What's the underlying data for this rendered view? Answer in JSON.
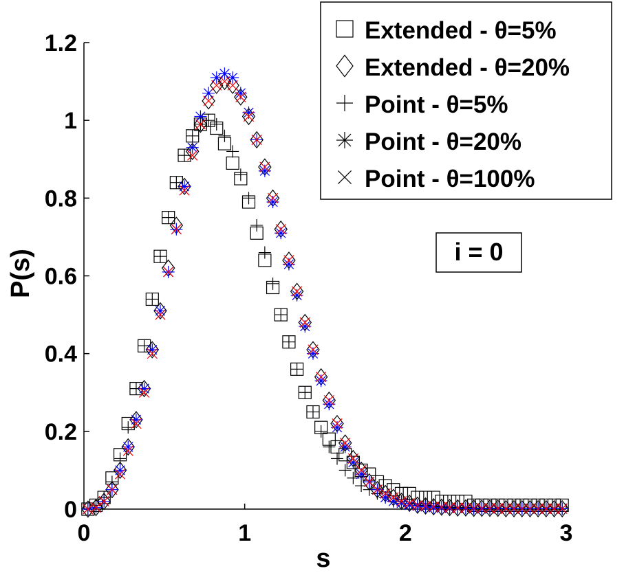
{
  "chart_data": {
    "type": "scatter",
    "title": "",
    "xlabel": "s",
    "ylabel": "P(s)",
    "xlim": [
      0,
      3
    ],
    "ylim": [
      0,
      1.2
    ],
    "xticks": [
      0,
      1,
      2,
      3
    ],
    "xtick_labels": [
      "0",
      "1",
      "2",
      "3"
    ],
    "yticks": [
      0,
      0.2,
      0.4,
      0.6,
      0.8,
      1.0,
      1.2
    ],
    "ytick_labels": [
      "0",
      "0.2",
      "0.4",
      "0.6",
      "0.8",
      "1",
      "1.2"
    ],
    "grid": false,
    "legend_position": "top-right",
    "annotation": "i = 0",
    "x": [
      0.025,
      0.075,
      0.125,
      0.175,
      0.225,
      0.275,
      0.325,
      0.375,
      0.425,
      0.475,
      0.525,
      0.575,
      0.625,
      0.675,
      0.725,
      0.775,
      0.825,
      0.875,
      0.925,
      0.975,
      1.025,
      1.075,
      1.125,
      1.175,
      1.225,
      1.275,
      1.325,
      1.375,
      1.425,
      1.475,
      1.525,
      1.575,
      1.625,
      1.675,
      1.725,
      1.775,
      1.825,
      1.875,
      1.925,
      1.975,
      2.025,
      2.075,
      2.125,
      2.175,
      2.225,
      2.275,
      2.325,
      2.375,
      2.425,
      2.475,
      2.525,
      2.575,
      2.625,
      2.675,
      2.725,
      2.775,
      2.825,
      2.875,
      2.925,
      2.975
    ],
    "series": [
      {
        "name": "Extended - θ=5%",
        "marker": "square",
        "color": "#000000",
        "values": [
          0.0,
          0.01,
          0.03,
          0.08,
          0.14,
          0.22,
          0.31,
          0.42,
          0.54,
          0.65,
          0.75,
          0.84,
          0.91,
          0.96,
          0.99,
          1.0,
          0.98,
          0.94,
          0.89,
          0.85,
          0.79,
          0.71,
          0.64,
          0.57,
          0.5,
          0.43,
          0.36,
          0.3,
          0.25,
          0.21,
          0.18,
          0.16,
          0.14,
          0.12,
          0.1,
          0.09,
          0.07,
          0.06,
          0.05,
          0.04,
          0.04,
          0.03,
          0.03,
          0.03,
          0.02,
          0.02,
          0.02,
          0.02,
          0.01,
          0.01,
          0.01,
          0.01,
          0.01,
          0.01,
          0.01,
          0.01,
          0.01,
          0.01,
          0.01,
          0.01
        ]
      },
      {
        "name": "Extended - θ=20%",
        "marker": "diamond",
        "color": "#000000",
        "values": [
          0.0,
          0.004,
          0.02,
          0.05,
          0.1,
          0.16,
          0.23,
          0.31,
          0.41,
          0.51,
          0.62,
          0.73,
          0.83,
          0.92,
          0.99,
          1.05,
          1.09,
          1.1,
          1.09,
          1.06,
          1.01,
          0.95,
          0.88,
          0.8,
          0.72,
          0.64,
          0.56,
          0.48,
          0.41,
          0.34,
          0.28,
          0.22,
          0.17,
          0.13,
          0.1,
          0.07,
          0.05,
          0.04,
          0.03,
          0.02,
          0.015,
          0.01,
          0.008,
          0.006,
          0.005,
          0.004,
          0.003,
          0.003,
          0.002,
          0.002,
          0.002,
          0.002,
          0.001,
          0.001,
          0.001,
          0.001,
          0.001,
          0.001,
          0.001,
          0.001
        ]
      },
      {
        "name": "Point - θ=5%",
        "marker": "plus",
        "color": "#000000",
        "values": [
          0.0,
          0.01,
          0.03,
          0.07,
          0.13,
          0.21,
          0.31,
          0.42,
          0.54,
          0.65,
          0.75,
          0.84,
          0.91,
          0.96,
          0.99,
          1.0,
          0.99,
          0.96,
          0.92,
          0.86,
          0.8,
          0.73,
          0.66,
          0.58,
          0.5,
          0.43,
          0.36,
          0.3,
          0.25,
          0.2,
          0.16,
          0.13,
          0.1,
          0.08,
          0.06,
          0.05,
          0.04,
          0.03,
          0.02,
          0.02,
          0.015,
          0.01,
          0.01,
          0.008,
          0.006,
          0.005,
          0.004,
          0.003,
          0.003,
          0.002,
          0.002,
          0.002,
          0.001,
          0.001,
          0.001,
          0.001,
          0.001,
          0.001,
          0.001,
          0.001
        ]
      },
      {
        "name": "Point - θ=20%",
        "marker": "asterisk",
        "color": "#0000ff",
        "values": [
          0.0,
          0.004,
          0.02,
          0.05,
          0.1,
          0.16,
          0.23,
          0.31,
          0.41,
          0.51,
          0.61,
          0.72,
          0.83,
          0.93,
          1.01,
          1.07,
          1.11,
          1.12,
          1.11,
          1.07,
          1.02,
          0.95,
          0.87,
          0.79,
          0.71,
          0.63,
          0.55,
          0.47,
          0.4,
          0.33,
          0.27,
          0.21,
          0.16,
          0.12,
          0.09,
          0.07,
          0.05,
          0.03,
          0.02,
          0.015,
          0.01,
          0.008,
          0.006,
          0.004,
          0.003,
          0.002,
          0.002,
          0.002,
          0.001,
          0.001,
          0.001,
          0.001,
          0.001,
          0.001,
          0.001,
          0.001,
          0.001,
          0.001,
          0.001,
          0.001
        ]
      },
      {
        "name": "Point - θ=100%",
        "marker": "cross",
        "color": "#ff0000",
        "values": [
          0.0,
          0.004,
          0.02,
          0.05,
          0.09,
          0.15,
          0.22,
          0.3,
          0.4,
          0.5,
          0.61,
          0.72,
          0.82,
          0.91,
          0.99,
          1.05,
          1.09,
          1.1,
          1.09,
          1.06,
          1.01,
          0.95,
          0.88,
          0.8,
          0.72,
          0.64,
          0.56,
          0.48,
          0.41,
          0.34,
          0.28,
          0.22,
          0.17,
          0.13,
          0.1,
          0.07,
          0.05,
          0.04,
          0.03,
          0.02,
          0.015,
          0.01,
          0.008,
          0.006,
          0.005,
          0.004,
          0.003,
          0.003,
          0.002,
          0.002,
          0.002,
          0.002,
          0.001,
          0.001,
          0.001,
          0.001,
          0.001,
          0.001,
          0.001,
          0.001
        ]
      }
    ]
  }
}
